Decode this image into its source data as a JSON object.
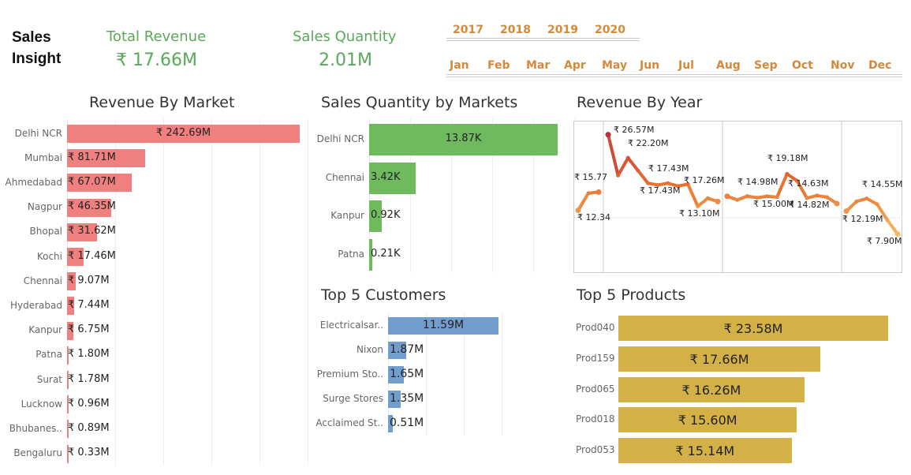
{
  "header": {
    "title": "Sales\nInsight",
    "kpis": [
      {
        "label": "Total Revenue",
        "value": "₹ 17.66M"
      },
      {
        "label": "Sales Quantity",
        "value": "2.01M"
      }
    ],
    "years": [
      "2017",
      "2018",
      "2019",
      "2020"
    ],
    "months": [
      "Jan",
      "Feb",
      "Mar",
      "Apr",
      "May",
      "Jun",
      "Jul",
      "Aug",
      "Sep",
      "Oct",
      "Nov",
      "Dec"
    ],
    "accent_color": "#d4893a",
    "kpi_color": "#5aa85a"
  },
  "revenue_by_market": {
    "title": "Revenue By Market",
    "color": "#f08080",
    "categories": [
      "Delhi NCR",
      "Mumbai",
      "Ahmedabad",
      "Nagpur",
      "Bhopal",
      "Kochi",
      "Chennai",
      "Hyderabad",
      "Kanpur",
      "Patna",
      "Surat",
      "Lucknow",
      "Bhubanes..",
      "Bengaluru"
    ],
    "values": [
      242.69,
      81.71,
      67.07,
      46.35,
      31.62,
      17.46,
      9.07,
      7.44,
      6.75,
      1.8,
      1.78,
      0.96,
      0.89,
      0.33
    ],
    "labels": [
      "₹ 242.69M",
      "₹ 81.71M",
      "₹ 67.07M",
      "₹ 46.35M",
      "₹ 31.62M",
      "₹ 17.46M",
      "₹ 9.07M",
      "₹ 7.44M",
      "₹ 6.75M",
      "₹ 1.80M",
      "₹ 1.78M",
      "₹ 0.96M",
      "₹ 0.89M",
      "₹ 0.33M"
    ]
  },
  "sales_qty_by_market": {
    "title": "Sales Quantity by Markets",
    "color": "#6fba5f",
    "categories": [
      "Delhi NCR",
      "Chennai",
      "Kanpur",
      "Patna"
    ],
    "values": [
      13.87,
      3.42,
      0.92,
      0.21
    ],
    "labels": [
      "13.87K",
      "3.42K",
      "0.92K",
      "0.21K"
    ]
  },
  "top_customers": {
    "title": "Top 5 Customers",
    "color": "#729ece",
    "categories": [
      "Electricalsar..",
      "Nixon",
      "Premium Sto..",
      "Surge Stores",
      "Acclaimed St.."
    ],
    "values": [
      11.59,
      1.87,
      1.65,
      1.35,
      0.51
    ],
    "labels": [
      "11.59M",
      "1.87M",
      "1.65M",
      "1.35M",
      "0.51M"
    ]
  },
  "top_products": {
    "title": "Top 5 Products",
    "color": "#d4b146",
    "categories": [
      "Prod040",
      "Prod159",
      "Prod065",
      "Prod018",
      "Prod053"
    ],
    "values": [
      23.58,
      17.66,
      16.26,
      15.6,
      15.14
    ],
    "labels": [
      "₹ 23.58M",
      "₹ 17.66M",
      "₹ 16.26M",
      "₹ 15.60M",
      "₹ 15.14M"
    ]
  },
  "revenue_by_year": {
    "title": "Revenue By Year",
    "segments": [
      {
        "values": [
          12.34,
          15.55,
          15.77
        ]
      },
      {
        "values": [
          26.57,
          18.9,
          22.2,
          19.8,
          17.43,
          17.1,
          17.43,
          16.9,
          17.26,
          13.1,
          14.6,
          14.0
        ]
      },
      {
        "values": [
          14.98,
          14.3,
          15.0,
          14.7,
          14.98,
          14.82,
          19.18,
          17.9,
          14.63,
          15.1,
          14.82,
          13.6
        ]
      },
      {
        "values": [
          12.19,
          14.0,
          14.55,
          13.5,
          10.5,
          7.9
        ]
      }
    ],
    "point_labels": [
      "₹ 15.77",
      "₹ 12.34",
      "₹ 26.57M",
      "₹ 22.20M",
      "₹ 17.43M",
      "₹ 17.43M",
      "₹ 17.26M",
      "₹ 13.10M",
      "₹ 14.98M",
      "₹ 15.00M",
      "₹ 19.18M",
      "₹ 14.63M",
      "₹ 14.82M",
      "₹ 14.55M",
      "₹ 12.19M",
      "₹ 7.90M"
    ],
    "color_low": "#f4b860",
    "color_high": "#c0303a"
  }
}
